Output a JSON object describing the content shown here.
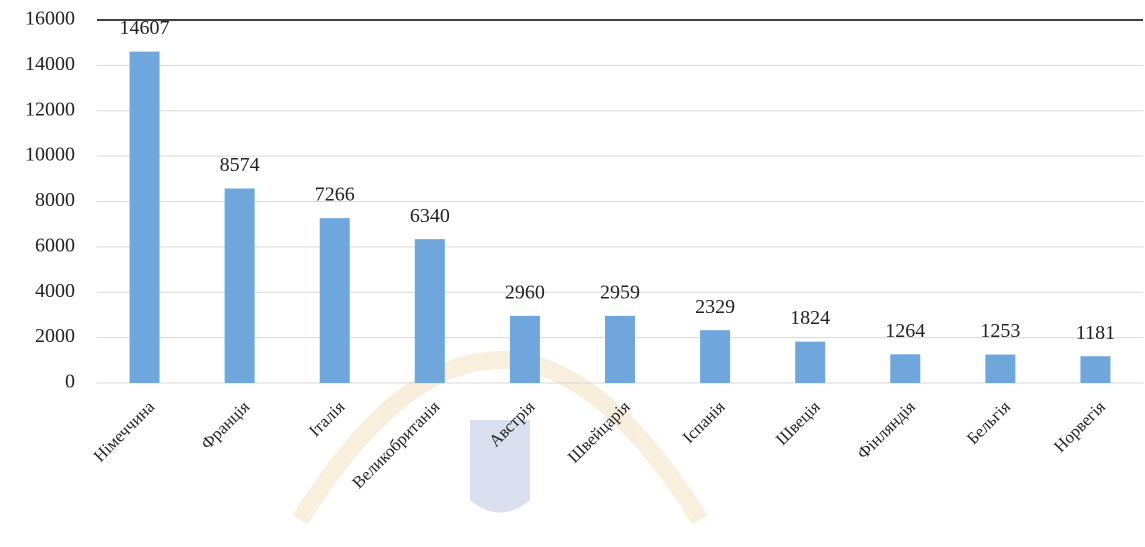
{
  "chart_data": {
    "type": "bar",
    "categories": [
      "Німеччина",
      "Франція",
      "Італія",
      "Великобританія",
      "Австрія",
      "Швейцарія",
      "Іспанія",
      "Швеція",
      "Фінляндія",
      "Бельгія",
      "Норвегія"
    ],
    "values": [
      14607,
      8574,
      7266,
      6340,
      2960,
      2959,
      2329,
      1824,
      1264,
      1253,
      1181
    ],
    "color": "#6fa6dc",
    "ylim": [
      0,
      16000
    ],
    "yticks": [
      0,
      2000,
      4000,
      6000,
      8000,
      10000,
      12000,
      14000,
      16000
    ],
    "grid": true,
    "data_labels": true
  }
}
